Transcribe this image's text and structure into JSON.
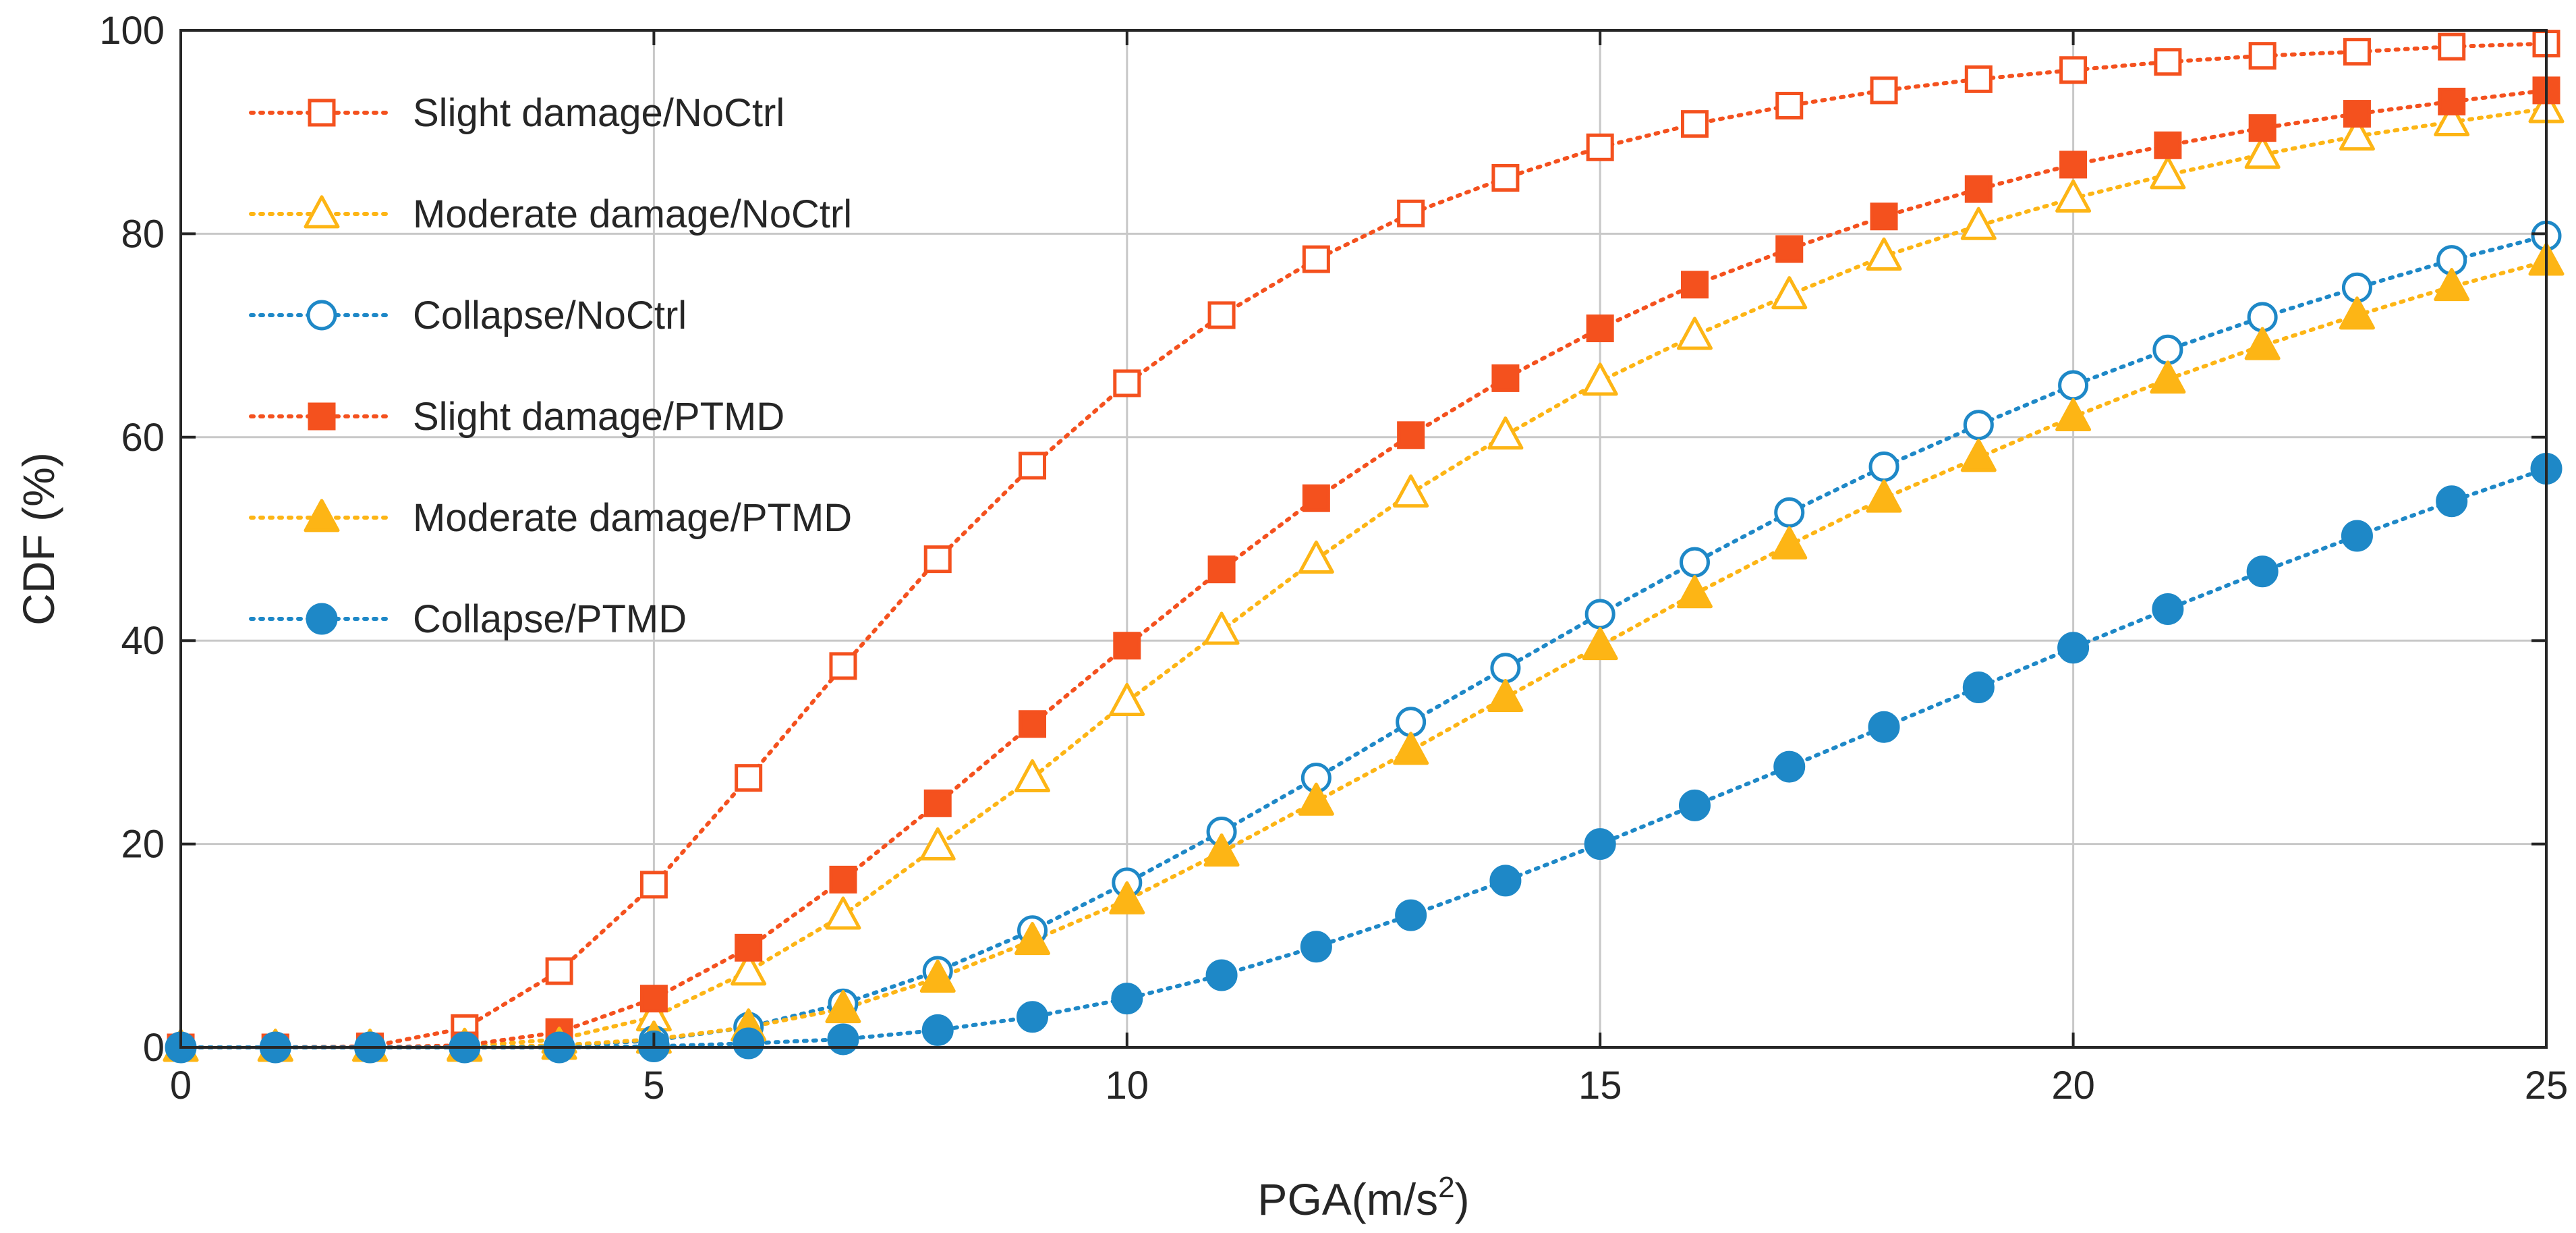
{
  "chart_data": {
    "type": "line",
    "xlabel": "PGA(m/s",
    "xlabel_sup": "2",
    "xlabel_close": ")",
    "ylabel": "CDF (%)",
    "xlim": [
      0,
      25
    ],
    "ylim": [
      0,
      100
    ],
    "xticks": [
      0,
      5,
      10,
      15,
      20,
      25
    ],
    "yticks": [
      0,
      20,
      40,
      60,
      80,
      100
    ],
    "grid": true,
    "legend_position": "top-left",
    "x": [
      0,
      1,
      2,
      3,
      4,
      5,
      6,
      7,
      8,
      9,
      10,
      11,
      12,
      13,
      14,
      15,
      16,
      17,
      18,
      19,
      20,
      21,
      22,
      23,
      24,
      25
    ],
    "series": [
      {
        "name": "Slight damage/NoCtrl",
        "color": "#F4511E",
        "marker": "square",
        "filled": false,
        "values": [
          0,
          0,
          0.1,
          1.9,
          7.5,
          16,
          26.5,
          37.5,
          48,
          57.2,
          65.3,
          72,
          77.5,
          82,
          85.5,
          88.5,
          90.8,
          92.6,
          94.1,
          95.2,
          96.1,
          96.9,
          97.5,
          97.9,
          98.4,
          98.7
        ]
      },
      {
        "name": "Moderate damage/NoCtrl",
        "color": "#FDB515",
        "marker": "triangle",
        "filled": false,
        "values": [
          0,
          0,
          0,
          0.1,
          0.8,
          3,
          7.5,
          13,
          19.8,
          26.5,
          34,
          41,
          48,
          54.5,
          60.2,
          65.5,
          70,
          74,
          77.8,
          80.8,
          83.5,
          85.8,
          87.8,
          89.6,
          91,
          92.3
        ]
      },
      {
        "name": "Collapse/NoCtrl",
        "color": "#1E88C7",
        "marker": "circle",
        "filled": false,
        "values": [
          0,
          0,
          0,
          0,
          0.1,
          0.7,
          2,
          4.3,
          7.5,
          11.5,
          16.2,
          21.2,
          26.5,
          32,
          37.3,
          42.6,
          47.7,
          52.6,
          57.1,
          61.2,
          65.1,
          68.6,
          71.8,
          74.7,
          77.4,
          79.8
        ]
      },
      {
        "name": "Slight damage/PTMD",
        "color": "#F4511E",
        "marker": "square",
        "filled": true,
        "values": [
          0,
          0,
          0,
          0.2,
          1.5,
          4.8,
          9.8,
          16.5,
          24,
          31.8,
          39.5,
          47,
          54,
          60.2,
          65.8,
          70.7,
          75,
          78.5,
          81.7,
          84.4,
          86.8,
          88.7,
          90.4,
          91.8,
          93,
          94.1
        ]
      },
      {
        "name": "Moderate damage/PTMD",
        "color": "#FDB515",
        "marker": "triangle",
        "filled": true,
        "values": [
          0,
          0,
          0,
          0,
          0.2,
          0.8,
          2,
          3.8,
          6.8,
          10.5,
          14.5,
          19.2,
          24.2,
          29.2,
          34.4,
          39.5,
          44.6,
          49.4,
          54,
          58,
          62,
          65.7,
          69,
          72,
          74.8,
          77.3
        ]
      },
      {
        "name": "Collapse/PTMD",
        "color": "#1E88C7",
        "marker": "circle",
        "filled": true,
        "values": [
          0,
          0,
          0,
          0,
          0,
          0.1,
          0.4,
          0.8,
          1.7,
          3,
          4.8,
          7.1,
          9.9,
          13,
          16.4,
          20,
          23.8,
          27.6,
          31.5,
          35.4,
          39.3,
          43.1,
          46.8,
          50.3,
          53.7,
          56.9
        ]
      }
    ]
  }
}
